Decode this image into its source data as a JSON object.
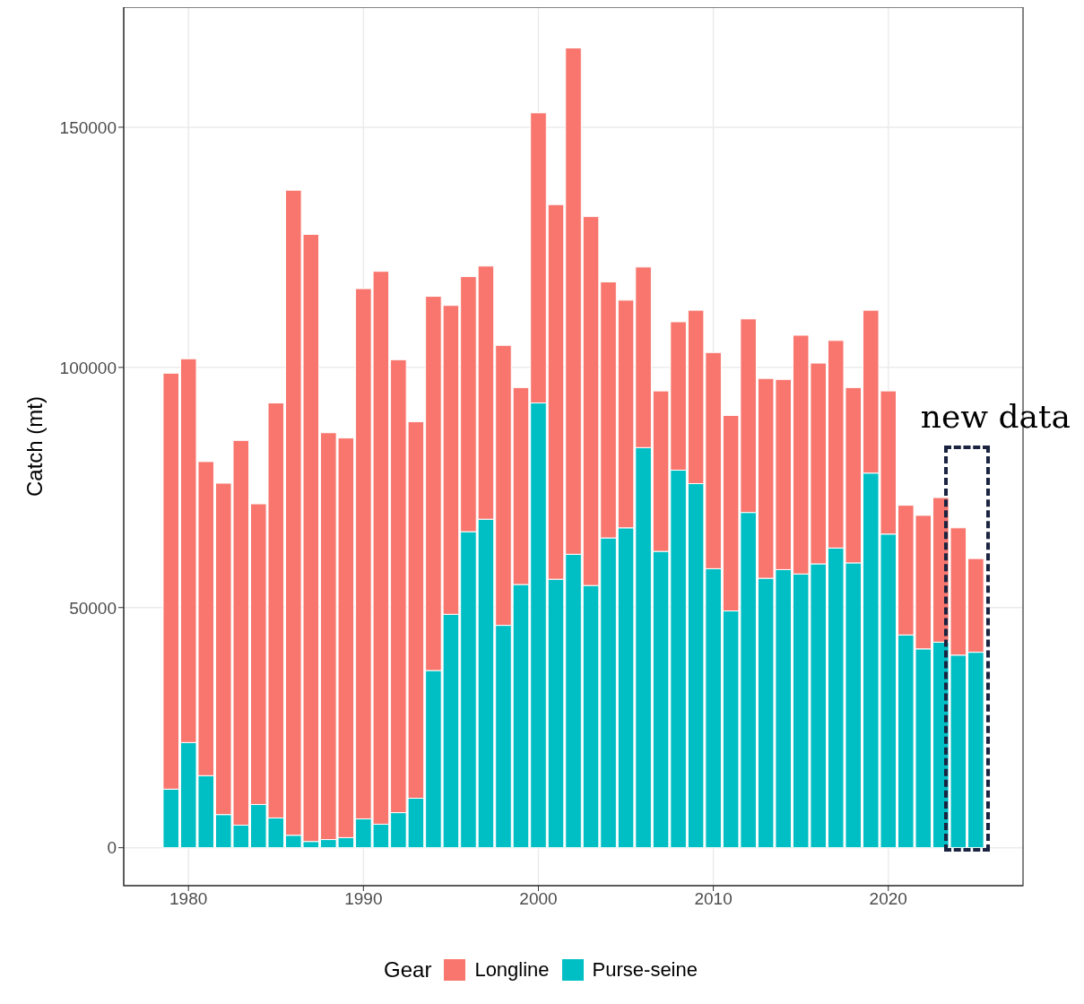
{
  "chart_data": {
    "type": "bar",
    "stacked": true,
    "xlabel": null,
    "ylabel": "Catch (mt)",
    "legend_title": "Gear",
    "legend": "bottom",
    "grid": true,
    "x": [
      1979,
      1980,
      1981,
      1982,
      1983,
      1984,
      1985,
      1986,
      1987,
      1988,
      1989,
      1990,
      1991,
      1992,
      1993,
      1994,
      1995,
      1996,
      1997,
      1998,
      1999,
      2000,
      2001,
      2002,
      2003,
      2004,
      2005,
      2006,
      2007,
      2008,
      2009,
      2010,
      2011,
      2012,
      2013,
      2014,
      2015,
      2016,
      2017,
      2018,
      2019,
      2020,
      2021,
      2022,
      2023,
      2024,
      2025
    ],
    "series": [
      {
        "name": "Purse-seine",
        "color": "#00bfc4",
        "values": [
          12200,
          21900,
          15000,
          6900,
          4700,
          9000,
          6200,
          2600,
          1300,
          1700,
          2100,
          6000,
          4900,
          7300,
          10300,
          36900,
          48600,
          65800,
          68400,
          46300,
          54800,
          92600,
          55900,
          61100,
          54600,
          64500,
          66600,
          83300,
          61700,
          78600,
          75800,
          58100,
          49300,
          69800,
          56100,
          57900,
          57000,
          59100,
          62400,
          59300,
          78000,
          65300,
          44300,
          41400,
          42800,
          40100,
          40700
        ]
      },
      {
        "name": "Longline",
        "color": "#f8766d",
        "values": [
          86600,
          79900,
          65400,
          69000,
          80100,
          62600,
          86400,
          134300,
          126400,
          84700,
          83200,
          110400,
          115100,
          94300,
          78400,
          77900,
          64300,
          53100,
          52700,
          58300,
          41000,
          60400,
          78000,
          105400,
          76800,
          53300,
          47400,
          37600,
          33400,
          30900,
          36100,
          45000,
          40700,
          40300,
          41600,
          39600,
          49700,
          41800,
          43200,
          36500,
          33900,
          29800,
          27000,
          27800,
          30100,
          26500,
          19500
        ]
      }
    ],
    "xlim": [
      1976.3,
      2027.7
    ],
    "xticks": [
      1980,
      1990,
      2000,
      2010,
      2020
    ],
    "ylim": [
      -7900,
      175000
    ],
    "yticks": [
      0,
      50000,
      100000,
      150000
    ],
    "annotations": [
      "new data"
    ]
  }
}
